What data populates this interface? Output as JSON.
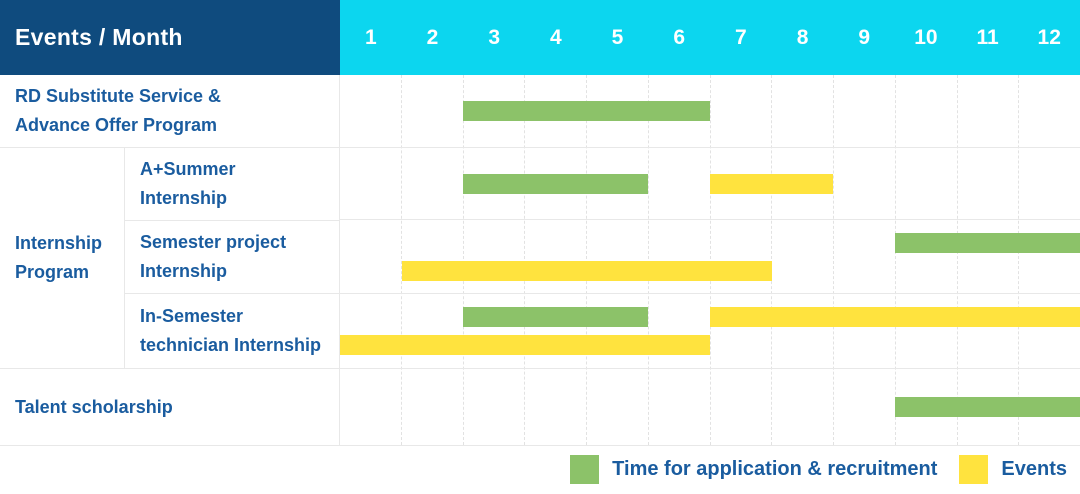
{
  "header": {
    "title": "Events / Month",
    "months": [
      "1",
      "2",
      "3",
      "4",
      "5",
      "6",
      "7",
      "8",
      "9",
      "10",
      "11",
      "12"
    ]
  },
  "colors": {
    "header_bg": "#0F4B7E",
    "month_header_bg": "#0CD6EF",
    "header_text": "#FFFFFF",
    "label_text": "#1A5C9F",
    "application_bar": "#8CC269",
    "events_bar": "#FFE33E",
    "grid_line": "#E8E8E8"
  },
  "chart_data": {
    "type": "gantt",
    "x_axis": {
      "label": "Month",
      "ticks": [
        1,
        2,
        3,
        4,
        5,
        6,
        7,
        8,
        9,
        10,
        11,
        12
      ]
    },
    "series_names": [
      "Time for application & recruitment",
      "Events"
    ],
    "rows": [
      {
        "group": null,
        "label": "RD Substitute Service & Advance Offer Program",
        "label_lines": [
          "RD Substitute Service &",
          "Advance Offer Program"
        ],
        "bars": [
          {
            "series": "Time for application & recruitment",
            "start_month": 3,
            "end_month": 6,
            "lane": "center"
          }
        ]
      },
      {
        "group": "Internship Program",
        "label": "A+Summer Internship",
        "label_lines": [
          "A+Summer",
          "Internship"
        ],
        "bars": [
          {
            "series": "Time for application & recruitment",
            "start_month": 3,
            "end_month": 5,
            "lane": "center"
          },
          {
            "series": "Events",
            "start_month": 7,
            "end_month": 8,
            "lane": "center"
          }
        ]
      },
      {
        "group": "Internship Program",
        "label": "Semester project Internship",
        "label_lines": [
          "Semester project",
          "Internship"
        ],
        "bars": [
          {
            "series": "Time for application & recruitment",
            "start_month": 10,
            "end_month": 12,
            "lane": "top"
          },
          {
            "series": "Events",
            "start_month": 2,
            "end_month": 7,
            "lane": "bottom"
          }
        ]
      },
      {
        "group": "Internship Program",
        "label": "In-Semester technician Internship",
        "label_lines": [
          "In-Semester",
          "technician Internship"
        ],
        "bars": [
          {
            "series": "Time for application & recruitment",
            "start_month": 3,
            "end_month": 5,
            "lane": "top"
          },
          {
            "series": "Events",
            "start_month": 7,
            "end_month": 12,
            "lane": "top"
          },
          {
            "series": "Events",
            "start_month": 1,
            "end_month": 6,
            "lane": "bottom"
          }
        ]
      },
      {
        "group": null,
        "label": "Talent scholarship",
        "label_lines": [
          "Talent scholarship"
        ],
        "bars": [
          {
            "series": "Time for application & recruitment",
            "start_month": 10,
            "end_month": 12,
            "lane": "center"
          }
        ]
      }
    ],
    "group_label_lines": [
      "Internship",
      "Program"
    ]
  },
  "legend": {
    "items": [
      {
        "label": "Time for application & recruitment",
        "color": "#8CC269"
      },
      {
        "label": "Events",
        "color": "#FFE33E"
      }
    ]
  }
}
